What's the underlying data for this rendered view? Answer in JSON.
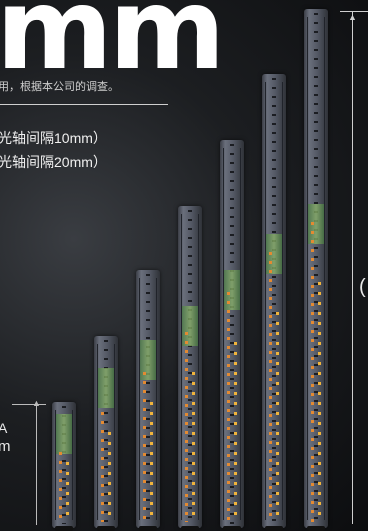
{
  "headline": "mm",
  "note": "用，根据本公司的调查。",
  "specs": [
    "光轴间隔10mm）",
    "光轴间隔20mm）"
  ],
  "left_dimension": {
    "line1": "A",
    "line2": "m"
  },
  "right_dimension": {
    "label": "("
  },
  "bars": [
    {
      "name": "shortest"
    },
    {
      "name": "bar-2"
    },
    {
      "name": "bar-3"
    },
    {
      "name": "bar-4"
    },
    {
      "name": "bar-5"
    },
    {
      "name": "bar-6"
    },
    {
      "name": "tallest"
    }
  ]
}
